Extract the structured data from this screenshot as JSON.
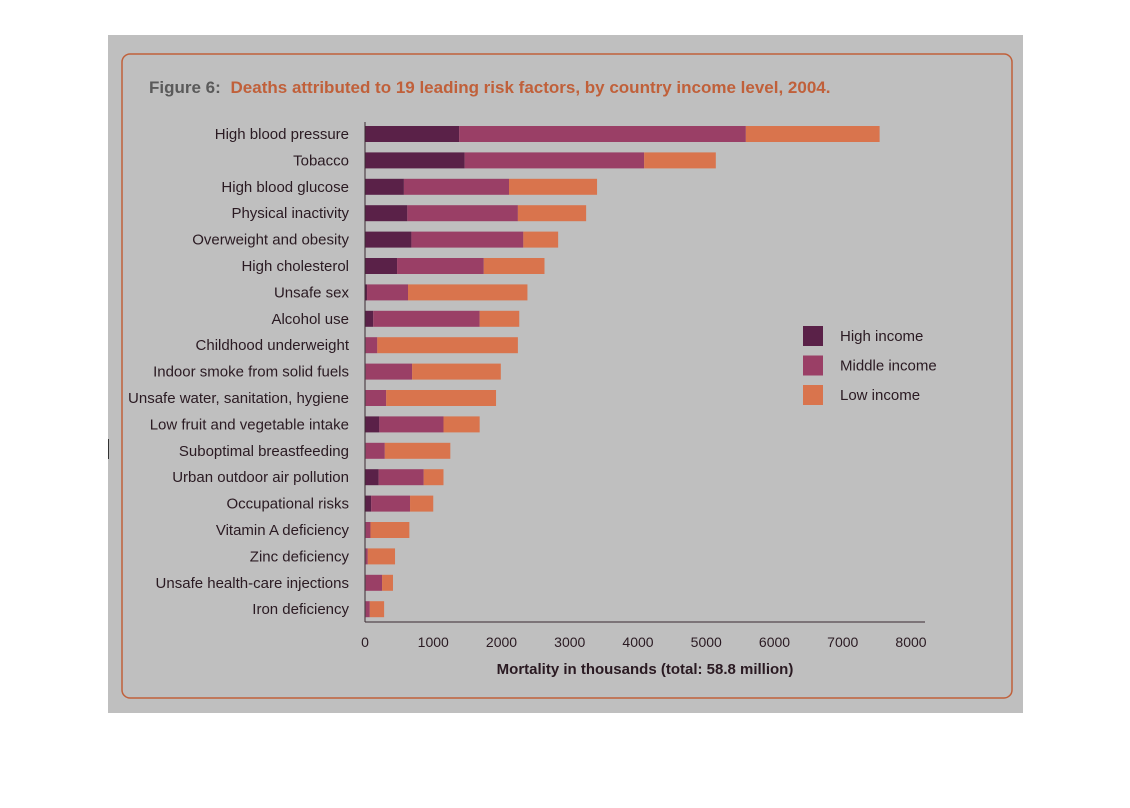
{
  "figure": {
    "title_prefix": "Figure 6:",
    "title_text": "Deaths attributed to 19 leading risk factors, by country income level, 2004."
  },
  "colors": {
    "background": "#bfbfbf",
    "frame": "#c0603a",
    "title_prefix": "#5a5a5a",
    "title_text": "#c0603a",
    "high_income": "#5a2148",
    "middle_income": "#9a3f66",
    "low_income": "#d9744d"
  },
  "chart_data": {
    "type": "bar",
    "orientation": "horizontal",
    "stacked": true,
    "categories": [
      "High blood pressure",
      "Tobacco",
      "High blood glucose",
      "Physical inactivity",
      "Overweight and obesity",
      "High cholesterol",
      "Unsafe sex",
      "Alcohol use",
      "Childhood underweight",
      "Indoor smoke from solid fuels",
      "Unsafe water, sanitation, hygiene",
      "Low fruit and vegetable intake",
      "Suboptimal breastfeeding",
      "Urban outdoor air pollution",
      "Occupational risks",
      "Vitamin A deficiency",
      "Zinc deficiency",
      "Unsafe health-care injections",
      "Iron deficiency"
    ],
    "series": [
      {
        "name": "High income",
        "color": "#5a2148",
        "values": [
          1380,
          1460,
          570,
          620,
          680,
          470,
          30,
          120,
          10,
          10,
          10,
          210,
          10,
          200,
          90,
          10,
          10,
          10,
          10
        ]
      },
      {
        "name": "Middle income",
        "color": "#9a3f66",
        "values": [
          4200,
          2630,
          1540,
          1620,
          1640,
          1270,
          600,
          1560,
          170,
          680,
          300,
          940,
          280,
          660,
          570,
          70,
          30,
          240,
          60
        ]
      },
      {
        "name": "Low income",
        "color": "#d9744d",
        "values": [
          1960,
          1050,
          1290,
          1000,
          510,
          890,
          1750,
          580,
          2060,
          1300,
          1610,
          530,
          960,
          290,
          340,
          570,
          400,
          160,
          210
        ]
      }
    ],
    "xlabel": "Mortality in thousands (total: 58.8 million)",
    "ylabel": "",
    "xlim": [
      0,
      8000
    ],
    "xticks": [
      "0",
      "1000",
      "2000",
      "3000",
      "4000",
      "5000",
      "6000",
      "7000",
      "8000"
    ],
    "grid": false,
    "legend_position": "right"
  }
}
